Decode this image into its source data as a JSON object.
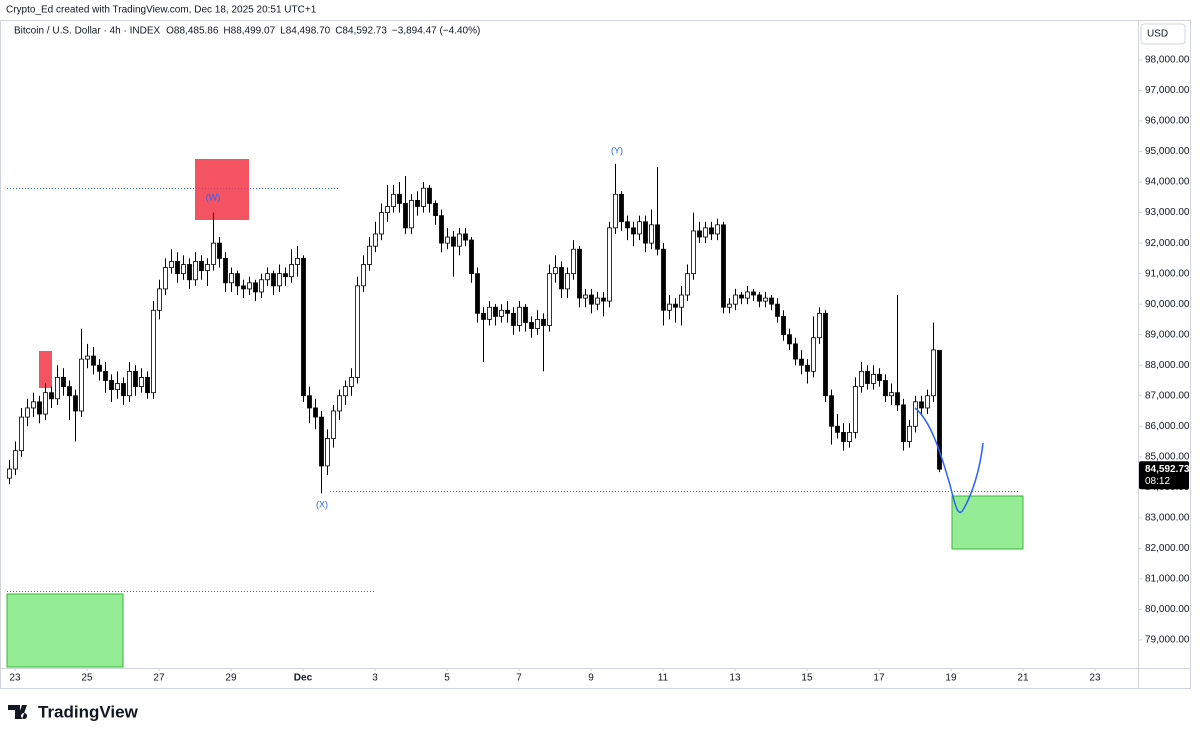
{
  "header": {
    "credit": "Crypto_Ed created with TradingView.com, Dec 18, 2025 20:51 UTC+1",
    "currency": "USD",
    "logo": "TradingView"
  },
  "chart_data": {
    "type": "candlestick",
    "symbol": "Bitcoin / U.S. Dollar · 4h · INDEX",
    "legend_values": [
      "O88,485.86",
      "H88,499.07",
      "L84,498.70",
      "C84,592.73",
      "−3,894.47 (−4.40%)"
    ],
    "last_price_label": "84,592.73",
    "countdown": "08:12",
    "up_color": "#ffffff",
    "down_color": "#000000",
    "edge_color": "#000000",
    "ylim": [
      78080,
      99310
    ],
    "yticks": [
      {
        "value": 79000,
        "label": "79,000.00"
      },
      {
        "value": 80000,
        "label": "80,000.00"
      },
      {
        "value": 81000,
        "label": "81,000.00"
      },
      {
        "value": 82000,
        "label": "82,000.00"
      },
      {
        "value": 83000,
        "label": "83,000.00"
      },
      {
        "value": 84000,
        "label": "84,000.00"
      },
      {
        "value": 85000,
        "label": "85,000.00"
      },
      {
        "value": 86000,
        "label": "86,000.00"
      },
      {
        "value": 87000,
        "label": "87,000.00"
      },
      {
        "value": 88000,
        "label": "88,000.00"
      },
      {
        "value": 89000,
        "label": "89,000.00"
      },
      {
        "value": 90000,
        "label": "90,000.00"
      },
      {
        "value": 91000,
        "label": "91,000.00"
      },
      {
        "value": 92000,
        "label": "92,000.00"
      },
      {
        "value": 93000,
        "label": "93,000.00"
      },
      {
        "value": 94000,
        "label": "94,000.00"
      },
      {
        "value": 95000,
        "label": "95,000.00"
      },
      {
        "value": 96000,
        "label": "96,000.00"
      },
      {
        "value": 97000,
        "label": "97,000.00"
      },
      {
        "value": 98000,
        "label": "98,000.00"
      }
    ],
    "xlim": [
      -0.33,
      188.17
    ],
    "xticks": [
      {
        "value": 1,
        "label": "23"
      },
      {
        "value": 13,
        "label": "25"
      },
      {
        "value": 25,
        "label": "27"
      },
      {
        "value": 37,
        "label": "29"
      },
      {
        "value": 49,
        "label": "Dec"
      },
      {
        "value": 61,
        "label": "3"
      },
      {
        "value": 73,
        "label": "5"
      },
      {
        "value": 85,
        "label": "7"
      },
      {
        "value": 97,
        "label": "9"
      },
      {
        "value": 109,
        "label": "11"
      },
      {
        "value": 121,
        "label": "13"
      },
      {
        "value": 133,
        "label": "15"
      },
      {
        "value": 145,
        "label": "17"
      },
      {
        "value": 157,
        "label": "19"
      },
      {
        "value": 169,
        "label": "21"
      },
      {
        "value": 181,
        "label": "23"
      }
    ],
    "annotations": [
      "(W)",
      "(X)",
      "(Y)"
    ],
    "candles": [
      [
        84300,
        84900,
        84100,
        84600
      ],
      [
        84600,
        85500,
        84400,
        85200
      ],
      [
        85200,
        86600,
        85000,
        86300
      ],
      [
        86300,
        86900,
        86000,
        86600
      ],
      [
        86600,
        87100,
        86300,
        86800
      ],
      [
        86800,
        87000,
        86100,
        86400
      ],
      [
        86400,
        87400,
        86200,
        87100
      ],
      [
        87100,
        87300,
        86600,
        86900
      ],
      [
        86900,
        88000,
        86700,
        87600
      ],
      [
        87600,
        87900,
        87000,
        87300
      ],
      [
        87300,
        87500,
        86200,
        87000
      ],
      [
        87000,
        87200,
        85500,
        86500
      ],
      [
        86500,
        89200,
        86300,
        88200
      ],
      [
        88200,
        88700,
        87900,
        88300
      ],
      [
        88300,
        88600,
        87700,
        88000
      ],
      [
        88000,
        88200,
        87500,
        87800
      ],
      [
        87800,
        88100,
        87100,
        87500
      ],
      [
        87500,
        87700,
        86800,
        87200
      ],
      [
        87200,
        87800,
        86900,
        87400
      ],
      [
        87400,
        87600,
        86700,
        87000
      ],
      [
        87000,
        88100,
        86800,
        87800
      ],
      [
        87800,
        88000,
        87000,
        87300
      ],
      [
        87300,
        87900,
        87100,
        87600
      ],
      [
        87600,
        87800,
        86900,
        87100
      ],
      [
        87100,
        90100,
        86900,
        89800
      ],
      [
        89800,
        90800,
        89500,
        90500
      ],
      [
        90500,
        91500,
        90300,
        91200
      ],
      [
        91200,
        91800,
        91000,
        91400
      ],
      [
        91400,
        91700,
        90700,
        91000
      ],
      [
        91000,
        91600,
        90800,
        91300
      ],
      [
        91300,
        91500,
        90500,
        90800
      ],
      [
        90800,
        91700,
        90600,
        91400
      ],
      [
        91400,
        91600,
        90800,
        91100
      ],
      [
        91100,
        91500,
        90600,
        91300
      ],
      [
        91300,
        93000,
        91100,
        92000
      ],
      [
        92000,
        92200,
        91200,
        91500
      ],
      [
        91500,
        91700,
        90400,
        90700
      ],
      [
        90700,
        91200,
        90400,
        91000
      ],
      [
        91000,
        91100,
        90300,
        90600
      ],
      [
        90600,
        90800,
        90200,
        90500
      ],
      [
        90500,
        90900,
        90300,
        90700
      ],
      [
        90700,
        90800,
        90100,
        90400
      ],
      [
        90400,
        91000,
        90200,
        90800
      ],
      [
        90800,
        91200,
        90600,
        91000
      ],
      [
        91000,
        91100,
        90300,
        90600
      ],
      [
        90600,
        91300,
        90400,
        91000
      ],
      [
        91000,
        91200,
        90600,
        90900
      ],
      [
        90900,
        91800,
        90700,
        91300
      ],
      [
        91300,
        91900,
        90900,
        91500
      ],
      [
        91500,
        91600,
        86800,
        87000
      ],
      [
        87000,
        87300,
        86100,
        86600
      ],
      [
        86600,
        86900,
        85900,
        86300
      ],
      [
        86300,
        86500,
        83800,
        84700
      ],
      [
        84700,
        85900,
        84400,
        85600
      ],
      [
        85600,
        86700,
        85300,
        86500
      ],
      [
        86500,
        87200,
        86200,
        87000
      ],
      [
        87000,
        87500,
        86700,
        87300
      ],
      [
        87300,
        87900,
        87000,
        87600
      ],
      [
        87600,
        90900,
        87400,
        90600
      ],
      [
        90600,
        91600,
        90400,
        91300
      ],
      [
        91300,
        92200,
        91100,
        91900
      ],
      [
        91900,
        92700,
        91700,
        92300
      ],
      [
        92300,
        93300,
        92100,
        93000
      ],
      [
        93000,
        93900,
        92700,
        93200
      ],
      [
        93200,
        93900,
        93000,
        93600
      ],
      [
        93600,
        94000,
        93000,
        93300
      ],
      [
        93300,
        94200,
        92300,
        92500
      ],
      [
        92500,
        93600,
        92300,
        93400
      ],
      [
        93400,
        93700,
        92900,
        93200
      ],
      [
        93200,
        94000,
        93000,
        93800
      ],
      [
        93800,
        93900,
        93000,
        93300
      ],
      [
        93300,
        93400,
        92600,
        92900
      ],
      [
        92900,
        93100,
        91700,
        92000
      ],
      [
        92000,
        92500,
        91800,
        92200
      ],
      [
        92200,
        92400,
        90900,
        91900
      ],
      [
        91900,
        92500,
        91600,
        92300
      ],
      [
        92300,
        92500,
        91900,
        92100
      ],
      [
        92100,
        92200,
        90700,
        91000
      ],
      [
        91000,
        91200,
        89400,
        89700
      ],
      [
        89700,
        89900,
        88100,
        89500
      ],
      [
        89500,
        90100,
        89300,
        89900
      ],
      [
        89900,
        90000,
        89300,
        89600
      ],
      [
        89600,
        90000,
        89400,
        89800
      ],
      [
        89800,
        90100,
        89400,
        89700
      ],
      [
        89700,
        89900,
        89000,
        89300
      ],
      [
        89300,
        90100,
        89100,
        89900
      ],
      [
        89900,
        90000,
        89100,
        89400
      ],
      [
        89400,
        89600,
        88900,
        89200
      ],
      [
        89200,
        89800,
        89000,
        89500
      ],
      [
        89500,
        89700,
        87800,
        89300
      ],
      [
        89300,
        91300,
        89100,
        91000
      ],
      [
        91000,
        91600,
        90700,
        91200
      ],
      [
        91200,
        91400,
        90200,
        90500
      ],
      [
        90500,
        91200,
        90200,
        91000
      ],
      [
        91000,
        92100,
        90800,
        91800
      ],
      [
        91800,
        91900,
        89900,
        90200
      ],
      [
        90200,
        90500,
        89900,
        90300
      ],
      [
        90300,
        90500,
        89700,
        90000
      ],
      [
        90000,
        90400,
        89800,
        90200
      ],
      [
        90200,
        90400,
        89600,
        90100
      ],
      [
        90100,
        92700,
        89900,
        92500
      ],
      [
        92500,
        94600,
        92300,
        93600
      ],
      [
        93600,
        93700,
        92400,
        92700
      ],
      [
        92700,
        92900,
        92100,
        92500
      ],
      [
        92500,
        92700,
        91900,
        92300
      ],
      [
        92300,
        92900,
        92100,
        92700
      ],
      [
        92700,
        92900,
        91700,
        92000
      ],
      [
        92000,
        93100,
        91800,
        92600
      ],
      [
        92600,
        94500,
        91600,
        91800
      ],
      [
        91800,
        92000,
        89300,
        89800
      ],
      [
        89800,
        90300,
        89500,
        90000
      ],
      [
        90000,
        90200,
        89400,
        89900
      ],
      [
        89900,
        90600,
        89300,
        90300
      ],
      [
        90300,
        91300,
        90100,
        91000
      ],
      [
        91000,
        93000,
        90800,
        92400
      ],
      [
        92400,
        92700,
        92000,
        92200
      ],
      [
        92200,
        92700,
        92000,
        92500
      ],
      [
        92500,
        92700,
        92100,
        92300
      ],
      [
        92300,
        92800,
        92100,
        92600
      ],
      [
        92600,
        92700,
        89700,
        89900
      ],
      [
        89900,
        90200,
        89700,
        90000
      ],
      [
        90000,
        90500,
        89800,
        90300
      ],
      [
        90300,
        90400,
        90000,
        90200
      ],
      [
        90200,
        90600,
        90000,
        90400
      ],
      [
        90400,
        90500,
        90100,
        90300
      ],
      [
        90300,
        90400,
        89900,
        90100
      ],
      [
        90100,
        90400,
        89900,
        90200
      ],
      [
        90200,
        90300,
        89800,
        90000
      ],
      [
        90000,
        90200,
        89400,
        89600
      ],
      [
        89600,
        89800,
        88800,
        89000
      ],
      [
        89000,
        89200,
        88500,
        88700
      ],
      [
        88700,
        88900,
        88000,
        88200
      ],
      [
        88200,
        88500,
        87700,
        88000
      ],
      [
        88000,
        88200,
        87400,
        87800
      ],
      [
        87800,
        89600,
        87600,
        88900
      ],
      [
        88900,
        89900,
        88700,
        89700
      ],
      [
        89700,
        89800,
        86800,
        87000
      ],
      [
        87000,
        87200,
        85400,
        86000
      ],
      [
        86000,
        86400,
        85600,
        85800
      ],
      [
        85800,
        86100,
        85200,
        85500
      ],
      [
        85500,
        86100,
        85300,
        85800
      ],
      [
        85800,
        87600,
        85600,
        87300
      ],
      [
        87300,
        88100,
        87100,
        87800
      ],
      [
        87800,
        88000,
        87200,
        87400
      ],
      [
        87400,
        88000,
        87200,
        87700
      ],
      [
        87700,
        87900,
        87300,
        87500
      ],
      [
        87500,
        87700,
        86800,
        87000
      ],
      [
        87000,
        87400,
        86700,
        87100
      ],
      [
        87100,
        90300,
        86500,
        86700
      ],
      [
        86700,
        86900,
        85200,
        85500
      ],
      [
        85500,
        86200,
        85300,
        86000
      ],
      [
        86000,
        87000,
        85800,
        86800
      ],
      [
        86800,
        87000,
        86400,
        86600
      ],
      [
        86600,
        87200,
        86400,
        87000
      ],
      [
        87000,
        89400,
        86800,
        88500
      ],
      [
        88485.86,
        88499.07,
        84498.7,
        84592.73
      ]
    ]
  }
}
